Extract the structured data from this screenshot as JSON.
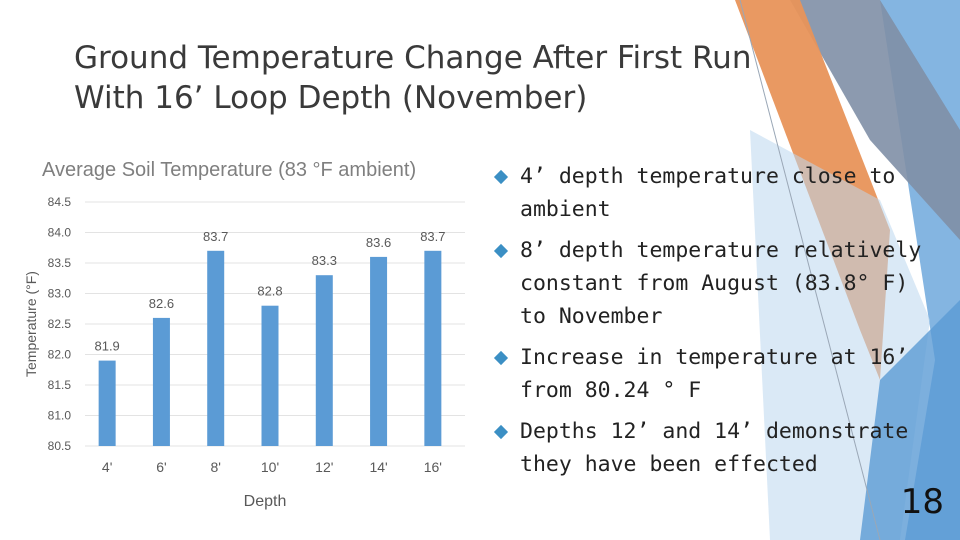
{
  "slide": {
    "title": "Ground Temperature Change After First Run With 16’ Loop Depth (November)",
    "page_number": "18"
  },
  "bullets": [
    "4’ depth temperature close to ambient",
    "8’ depth temperature relatively constant from August (83.8° F) to November",
    "Increase in temperature at 16’ from 80.24 ° F",
    "Depths 12’ and 14’ demonstrate they have been effected"
  ],
  "colors": {
    "bar": "#5b9bd5",
    "accent_orange": "#e8935a",
    "accent_blue": "#6fa8dc"
  },
  "chart_data": {
    "type": "bar",
    "title": "Average Soil Temperature (83 °F ambient)",
    "xlabel": "Depth",
    "ylabel": "Temperature (°F)",
    "categories": [
      "4'",
      "6'",
      "8'",
      "10'",
      "12'",
      "14'",
      "16'"
    ],
    "values": [
      81.9,
      82.6,
      83.7,
      82.8,
      83.3,
      83.6,
      83.7
    ],
    "value_labels": [
      "81.9",
      "82.6",
      "83.7",
      "82.8",
      "83.3",
      "83.6",
      "83.7"
    ],
    "ylim": [
      80.5,
      84.5
    ],
    "yticks": [
      "80.5",
      "81.0",
      "81.5",
      "82.0",
      "82.5",
      "83.0",
      "83.5",
      "84.0",
      "84.5"
    ],
    "grid": true
  }
}
